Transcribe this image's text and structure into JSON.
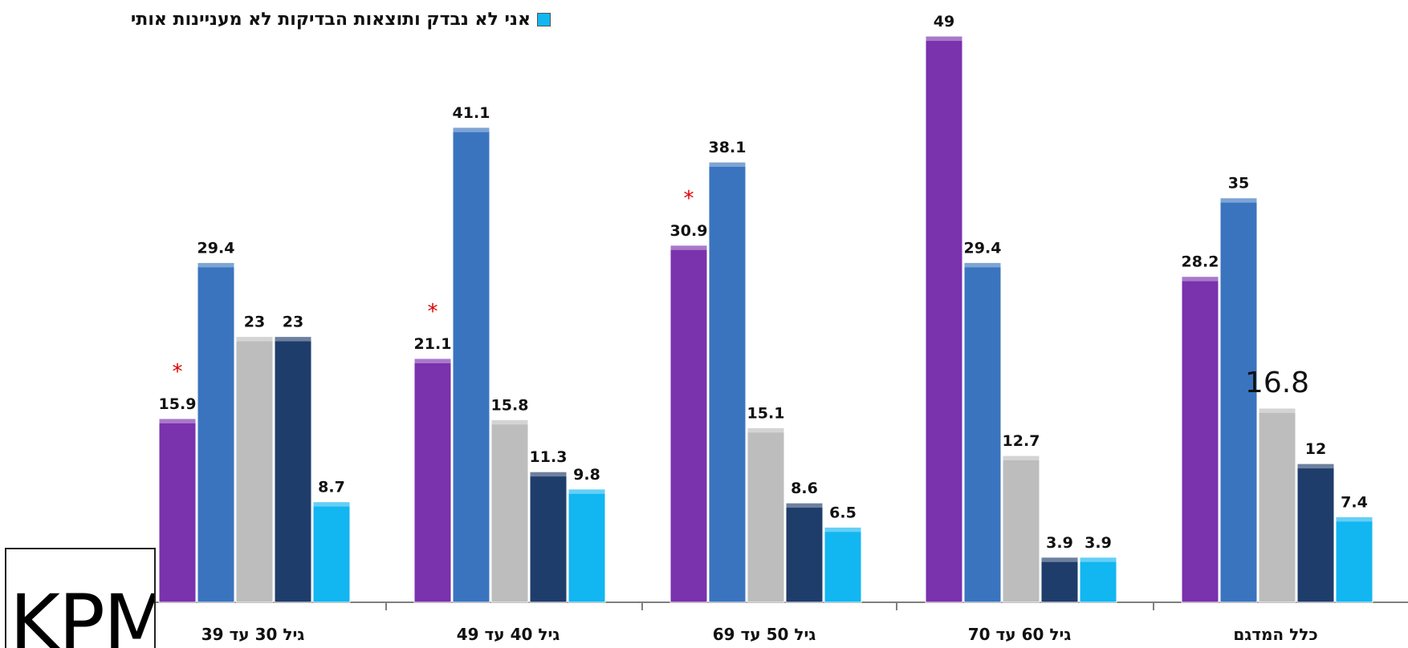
{
  "chart_data": {
    "type": "bar",
    "categories": [
      "גיל 30 עד 39",
      "גיל 40 עד 49",
      "גיל 50 עד 69",
      "גיל 60 עד 70",
      "כלל המדגם"
    ],
    "series": [
      {
        "name": "",
        "color": "#7a32ad",
        "values": [
          15.9,
          21.1,
          30.9,
          49,
          28.2
        ],
        "labels": [
          "15.9",
          "21.1",
          "30.9",
          "49",
          "28.2"
        ]
      },
      {
        "name": "",
        "color": "#3a74bf",
        "values": [
          29.4,
          41.1,
          38.1,
          29.4,
          35
        ],
        "labels": [
          "29.4",
          "41.1",
          "38.1",
          "29.4",
          "35"
        ]
      },
      {
        "name": "",
        "color": "#bdbdbd",
        "values": [
          23,
          15.8,
          15.1,
          12.7,
          16.8
        ],
        "labels": [
          "23",
          "15.8",
          "15.1",
          "12.7",
          "16.8"
        ]
      },
      {
        "name": "",
        "color": "#1f3d6b",
        "values": [
          23,
          11.3,
          8.6,
          3.9,
          12
        ],
        "labels": [
          "23",
          "11.3",
          "8.6",
          "3.9",
          "12"
        ]
      },
      {
        "name": "אני לא נבדק ותוצאות הבדיקות לא מעניינות אותי",
        "color": "#12b6f0",
        "values": [
          8.7,
          9.8,
          6.5,
          3.9,
          7.4
        ],
        "labels": [
          "8.7",
          "9.8",
          "6.5",
          "3.9",
          "7.4"
        ]
      }
    ],
    "asterisks": [
      {
        "category": "גיל 30 עד 39",
        "text": "*"
      },
      {
        "category": "גיל 40 עד 49",
        "text": "*"
      },
      {
        "category": "גיל 50 עד 69",
        "text": "*"
      }
    ],
    "ylim": [
      0,
      49
    ],
    "grid": false,
    "legend_position": "top",
    "title": "",
    "xlabel": "",
    "ylabel": ""
  },
  "logo": {
    "text": "KPM"
  }
}
